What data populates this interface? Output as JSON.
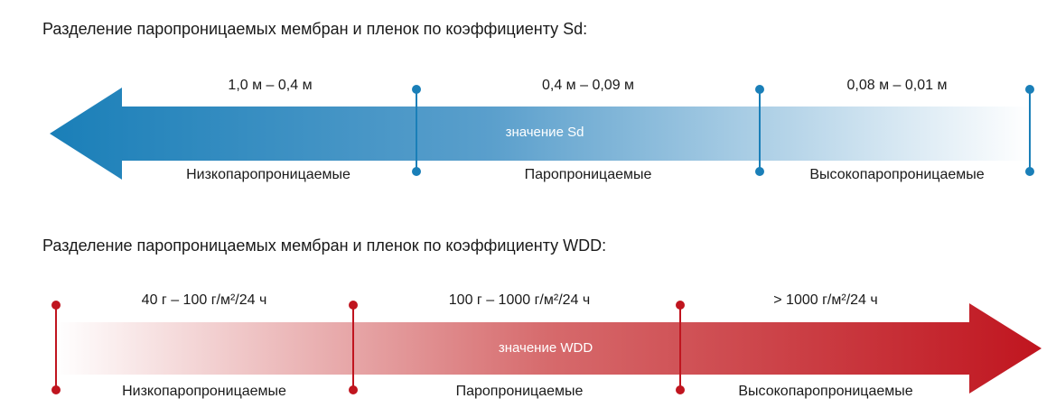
{
  "sd": {
    "title": "Разделение паропроницаемых мембран и пленок по коэффициенту Sd:",
    "ranges": [
      "1,0 м – 0,4 м",
      "0,4 м – 0,09 м",
      "0,08 м – 0,01 м"
    ],
    "categories": [
      "Низкопаропроницаемые",
      "Паропроницаемые",
      "Высокопаропроницаемые"
    ],
    "arrow_label": "значение Sd",
    "color": "#1a7fb8"
  },
  "wdd": {
    "title": "Разделение паропроницаемых мембран и пленок по коэффициенту WDD:",
    "ranges": [
      "40 г – 100 г/м²/24 ч",
      "100 г – 1000 г/м²/24 ч",
      "> 1000 г/м²/24 ч"
    ],
    "categories": [
      "Низкопаропроницаемые",
      "Паропроницаемые",
      "Высокопаропроницаемые"
    ],
    "arrow_label": "значение WDD",
    "color": "#c0151f"
  }
}
